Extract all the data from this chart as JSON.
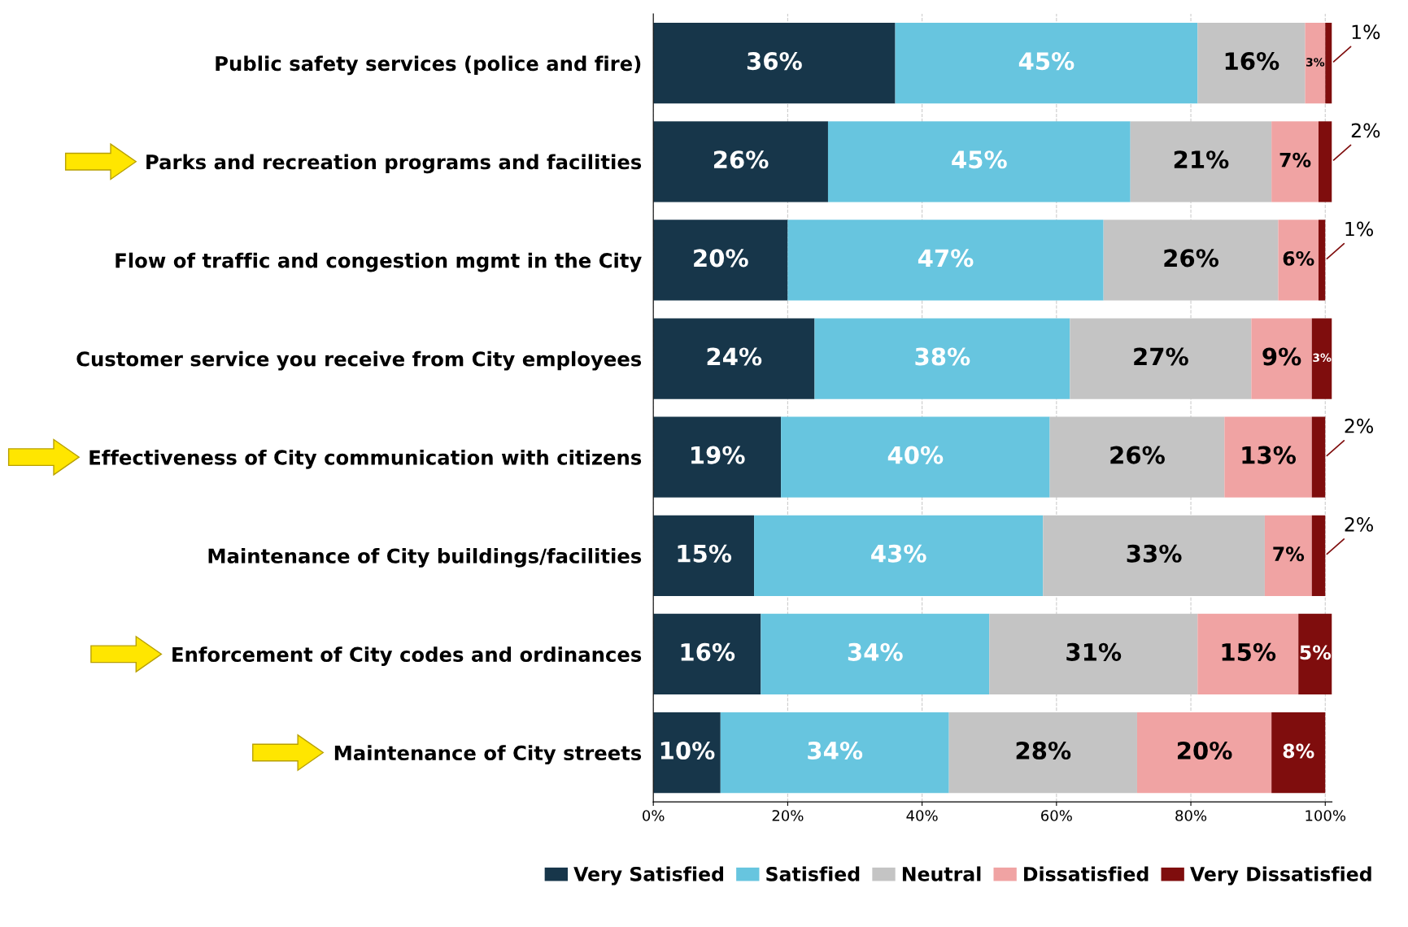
{
  "chart_data": {
    "type": "bar",
    "orientation": "horizontal",
    "stacked": true,
    "grid": "x",
    "legend": "bottom",
    "categories": [
      "Public safety services (police and fire)",
      "Parks and recreation programs and facilities",
      "Flow of traffic and congestion mgmt in the City",
      "Customer service you receive from City employees",
      "Effectiveness of City communication with citizens",
      "Maintenance of City buildings/facilities",
      "Enforcement of City codes and ordinances",
      "Maintenance of City streets"
    ],
    "xlim": [
      0,
      101
    ],
    "xticks": [
      {
        "value": 0,
        "label": "0%"
      },
      {
        "value": 20,
        "label": "20%"
      },
      {
        "value": 40,
        "label": "40%"
      },
      {
        "value": 60,
        "label": "60%"
      },
      {
        "value": 80,
        "label": "80%"
      },
      {
        "value": 100,
        "label": "100%"
      }
    ],
    "series": [
      {
        "name": "Very Satisfied",
        "color": "#17364a",
        "values": [
          36,
          26,
          20,
          24,
          19,
          15,
          16,
          10
        ],
        "value_labels": [
          "36%",
          "26%",
          "20%",
          "24%",
          "19%",
          "15%",
          "16%",
          "10%"
        ]
      },
      {
        "name": "Satisfied",
        "color": "#67c5df",
        "values": [
          45,
          45,
          47,
          38,
          40,
          43,
          34,
          34
        ],
        "value_labels": [
          "45%",
          "45%",
          "47%",
          "38%",
          "40%",
          "43%",
          "34%",
          "34%"
        ]
      },
      {
        "name": "Neutral",
        "color": "#c4c4c4",
        "values": [
          16,
          21,
          26,
          27,
          26,
          33,
          31,
          28
        ],
        "value_labels": [
          "16%",
          "21%",
          "26%",
          "27%",
          "26%",
          "33%",
          "31%",
          "28%"
        ]
      },
      {
        "name": "Dissatisfied",
        "color": "#f0a3a3",
        "values": [
          3,
          7,
          6,
          9,
          13,
          7,
          15,
          20
        ],
        "value_labels": [
          "3%",
          "7%",
          "6%",
          "9%",
          "13%",
          "7%",
          "15%",
          "20%"
        ]
      },
      {
        "name": "Very Dissatisfied",
        "color": "#7f0d0d",
        "values": [
          1,
          2,
          1,
          3,
          2,
          2,
          5,
          8
        ],
        "value_labels": [
          "1%",
          "2%",
          "1%",
          "3%",
          "2%",
          "2%",
          "5%",
          "8%"
        ]
      }
    ]
  }
}
